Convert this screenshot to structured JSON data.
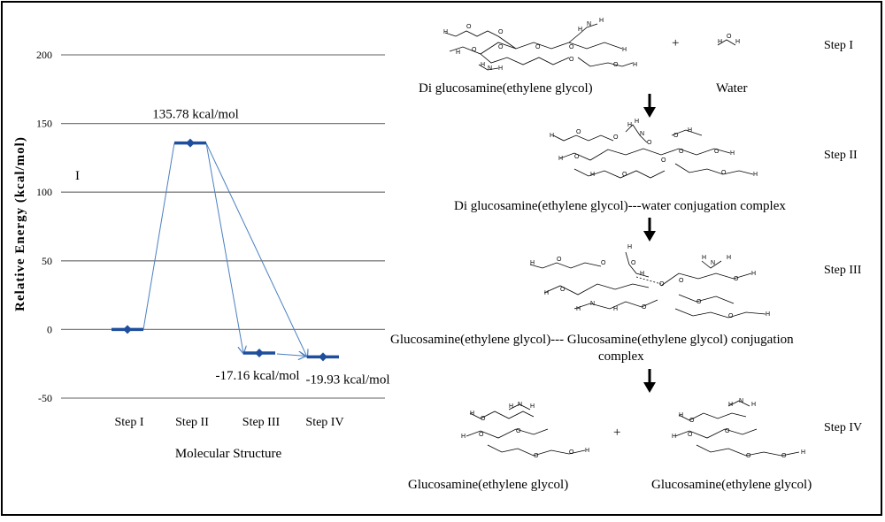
{
  "chart_data": {
    "type": "line",
    "ylabel": "Relative Energy  (kcal/mol)",
    "xlabel": "Molecular Structure",
    "ylim": [
      -50,
      200
    ],
    "yticks": [
      -50,
      0,
      50,
      100,
      150,
      200
    ],
    "grid": true,
    "categories": [
      "Step I",
      "Step II",
      "Step III",
      "Step IV"
    ],
    "values": [
      0,
      135.78,
      -17.16,
      -19.93
    ],
    "data_labels": [
      "",
      "135.78 kcal/mol",
      "-17.16 kcal/mol",
      "-19.93 kcal/mol"
    ],
    "annotations": [
      "I"
    ]
  },
  "scheme": {
    "steps": [
      {
        "step_label": "Step I",
        "captions": [
          "Di glucosamine(ethylene glycol)",
          "Water"
        ],
        "plus": "+"
      },
      {
        "step_label": "Step II",
        "captions": [
          "Di glucosamine(ethylene glycol)---water conjugation complex"
        ]
      },
      {
        "step_label": "Step III",
        "captions": [
          "Glucosamine(ethylene glycol)--- Glucosamine(ethylene glycol) conjugation",
          "complex"
        ]
      },
      {
        "step_label": "Step IV",
        "captions": [
          "Glucosamine(ethylene glycol)",
          "Glucosamine(ethylene glycol)"
        ],
        "plus": "+"
      }
    ],
    "atoms": {
      "H": "H",
      "O": "O",
      "N": "N"
    }
  }
}
